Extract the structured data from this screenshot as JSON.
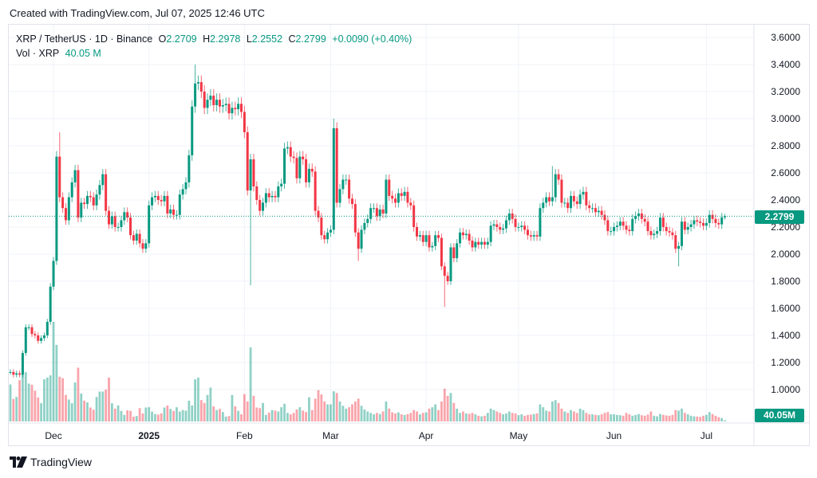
{
  "header": {
    "created": "Created with TradingView.com, Jul 07, 2025 12:46 UTC"
  },
  "legend": {
    "symbol": "XRP / TetherUS · 1D · Binance",
    "o_label": "O",
    "o": "2.2709",
    "h_label": "H",
    "h": "2.2978",
    "l_label": "L",
    "l": "2.2552",
    "c_label": "C",
    "c": "2.2799",
    "change": "+0.0090 (+0.40%)",
    "vol_label": "Vol · XRP",
    "vol": "40.05 M"
  },
  "last_price_tag": "2.2799",
  "last_volume_tag": "40.05M",
  "footer": {
    "brand": "TradingView"
  },
  "colors": {
    "up": "#089981",
    "down": "#F23645",
    "grid": "#f0f3fa",
    "tag": "#089981"
  },
  "chart_data": {
    "type": "candlestick",
    "title": "XRP / TetherUS · 1D · Binance",
    "price_ticks": [
      "3.6000",
      "3.4000",
      "3.2000",
      "3.0000",
      "2.8000",
      "2.6000",
      "2.4000",
      "2.2000",
      "2.0000",
      "1.8000",
      "1.6000",
      "1.4000",
      "1.2000",
      "1.0000"
    ],
    "ylim": [
      1.0,
      3.6
    ],
    "time_ticks": [
      {
        "label": "Dec",
        "date": "2024-12-01",
        "bold": false
      },
      {
        "label": "2025",
        "date": "2025-01-01",
        "bold": true
      },
      {
        "label": "Feb",
        "date": "2025-02-01",
        "bold": false
      },
      {
        "label": "Mar",
        "date": "2025-03-01",
        "bold": false
      },
      {
        "label": "Apr",
        "date": "2025-04-01",
        "bold": false
      },
      {
        "label": "May",
        "date": "2025-05-01",
        "bold": false
      },
      {
        "label": "Jun",
        "date": "2025-06-01",
        "bold": false
      },
      {
        "label": "Jul",
        "date": "2025-07-01",
        "bold": false
      }
    ],
    "grid": true,
    "months": [
      {
        "month": "2024-11",
        "first_day": 17,
        "close": [
          1.13,
          1.11,
          1.12,
          1.11,
          1.27,
          1.46,
          1.46,
          1.41,
          1.4,
          1.36,
          1.38,
          1.4,
          1.5,
          1.76
        ],
        "volume_m": [
          1300,
          790,
          860,
          1450,
          2220,
          1730,
          1330,
          1290,
          1080,
          840,
          640,
          1480,
          1540,
          1620
        ]
      },
      {
        "month": "2024-12",
        "first_day": 1,
        "close": [
          1.95,
          2.72,
          2.42,
          2.34,
          2.25,
          2.42,
          2.53,
          2.62,
          2.27,
          2.38,
          2.37,
          2.43,
          2.42,
          2.36,
          2.44,
          2.51,
          2.59,
          2.32,
          2.22,
          2.28,
          2.2,
          2.2,
          2.25,
          2.31,
          2.27,
          2.14,
          2.1,
          2.15,
          2.08,
          2.04,
          2.08
        ],
        "volume_m": [
          3500,
          2690,
          1570,
          1520,
          930,
          770,
          640,
          1370,
          1890,
          980,
          730,
          670,
          490,
          410,
          860,
          1050,
          1050,
          1120,
          1540,
          640,
          450,
          560,
          370,
          230,
          390,
          370,
          170,
          190,
          470,
          280,
          490
        ]
      },
      {
        "month": "2025-01",
        "first_day": 1,
        "close": [
          2.36,
          2.42,
          2.43,
          2.4,
          2.39,
          2.43,
          2.3,
          2.33,
          2.29,
          2.29,
          2.44,
          2.48,
          2.53,
          2.73,
          3.09,
          3.26,
          3.27,
          3.2,
          3.08,
          3.14,
          3.17,
          3.1,
          3.14,
          3.09,
          3.1,
          3.11,
          3.04,
          3.08,
          3.07,
          3.11,
          3.05
        ],
        "volume_m": [
          500,
          345,
          260,
          240,
          280,
          490,
          560,
          440,
          370,
          500,
          345,
          400,
          380,
          730,
          560,
          1480,
          1540,
          750,
          650,
          930,
          1190,
          530,
          400,
          440,
          330,
          170,
          190,
          930,
          530,
          370,
          250
        ]
      },
      {
        "month": "2025-02",
        "first_day": 1,
        "close": [
          2.9,
          2.47,
          2.7,
          2.5,
          2.4,
          2.32,
          2.38,
          2.45,
          2.42,
          2.43,
          2.42,
          2.5,
          2.52,
          2.78,
          2.79,
          2.72,
          2.71,
          2.56,
          2.72,
          2.7,
          2.53,
          2.63,
          2.61,
          2.32,
          2.27,
          2.14,
          2.11,
          2.16
        ],
        "volume_m": [
          960,
          700,
          2600,
          900,
          490,
          470,
          650,
          230,
          310,
          400,
          380,
          350,
          500,
          620,
          300,
          250,
          300,
          420,
          500,
          380,
          330,
          850,
          400,
          800,
          1100,
          950,
          700,
          600
        ]
      },
      {
        "month": "2025-03",
        "first_day": 1,
        "close": [
          2.18,
          2.93,
          2.38,
          2.48,
          2.55,
          2.55,
          2.41,
          2.37,
          2.16,
          2.04,
          2.18,
          2.23,
          2.26,
          2.34,
          2.34,
          2.28,
          2.33,
          2.3,
          2.55,
          2.43,
          2.41,
          2.38,
          2.45,
          2.43,
          2.46,
          2.38,
          2.36,
          2.2,
          2.13,
          2.14,
          2.09
        ],
        "volume_m": [
          600,
          1060,
          1000,
          700,
          550,
          450,
          500,
          600,
          700,
          800,
          550,
          420,
          350,
          300,
          250,
          300,
          260,
          350,
          700,
          450,
          320,
          280,
          320,
          250,
          230,
          260,
          300,
          400,
          350,
          250,
          300
        ]
      },
      {
        "month": "2025-04",
        "first_day": 1,
        "close": [
          2.14,
          2.05,
          2.06,
          2.14,
          2.12,
          1.91,
          1.84,
          1.8,
          2.05,
          1.97,
          2.08,
          2.16,
          2.14,
          2.15,
          2.1,
          2.05,
          2.09,
          2.07,
          2.09,
          2.07,
          2.09,
          2.21,
          2.22,
          2.2,
          2.18,
          2.19,
          2.25,
          2.3,
          2.26,
          2.2
        ],
        "volume_m": [
          320,
          450,
          500,
          600,
          400,
          700,
          1150,
          900,
          1000,
          650,
          450,
          300,
          350,
          280,
          270,
          300,
          250,
          200,
          180,
          200,
          300,
          450,
          400,
          350,
          300,
          250,
          280,
          350,
          300,
          280
        ]
      },
      {
        "month": "2025-05",
        "first_day": 1,
        "close": [
          2.2,
          2.21,
          2.18,
          2.14,
          2.13,
          2.14,
          2.13,
          2.34,
          2.38,
          2.42,
          2.39,
          2.42,
          2.59,
          2.55,
          2.38,
          2.38,
          2.34,
          2.43,
          2.39,
          2.37,
          2.44,
          2.46,
          2.36,
          2.34,
          2.34,
          2.31,
          2.32,
          2.29,
          2.25,
          2.17,
          2.17
        ],
        "volume_m": [
          220,
          250,
          200,
          230,
          240,
          260,
          280,
          600,
          500,
          380,
          350,
          700,
          750,
          650,
          450,
          350,
          300,
          400,
          350,
          300,
          450,
          400,
          300,
          250,
          250,
          230,
          220,
          250,
          300,
          330,
          250
        ]
      },
      {
        "month": "2025-06",
        "first_day": 1,
        "close": [
          2.2,
          2.21,
          2.24,
          2.21,
          2.18,
          2.17,
          2.26,
          2.28,
          2.3,
          2.26,
          2.24,
          2.17,
          2.14,
          2.15,
          2.17,
          2.27,
          2.2,
          2.17,
          2.16,
          2.14,
          2.04,
          2.06,
          2.24,
          2.18,
          2.2,
          2.22,
          2.25,
          2.24,
          2.23,
          2.21
        ],
        "volume_m": [
          250,
          230,
          220,
          200,
          300,
          250,
          200,
          230,
          260,
          220,
          200,
          240,
          350,
          200,
          180,
          260,
          230,
          210,
          200,
          230,
          400,
          380,
          450,
          300,
          250,
          200,
          180,
          170,
          160,
          200
        ]
      },
      {
        "month": "2025-07",
        "first_day": 1,
        "close": [
          2.23,
          2.29,
          2.26,
          2.23,
          2.22,
          2.2709,
          2.2799
        ],
        "volume_m": [
          230,
          330,
          260,
          200,
          150,
          120,
          40.05
        ]
      }
    ],
    "wick_extremes": {
      "2024-12-03": {
        "high": 2.9
      },
      "2025-01-16": {
        "high": 3.4
      },
      "2025-02-03": {
        "low": 1.77
      },
      "2025-03-02": {
        "high": 3.0
      },
      "2025-03-10": {
        "low": 1.95
      },
      "2025-04-07": {
        "low": 1.61
      },
      "2025-05-12": {
        "high": 2.65
      },
      "2025-06-22": {
        "low": 1.91
      },
      "2025-07-07": {
        "open": 2.2709,
        "high": 2.2978,
        "low": 2.2552,
        "close": 2.2799
      }
    },
    "last_price": 2.2799
  }
}
